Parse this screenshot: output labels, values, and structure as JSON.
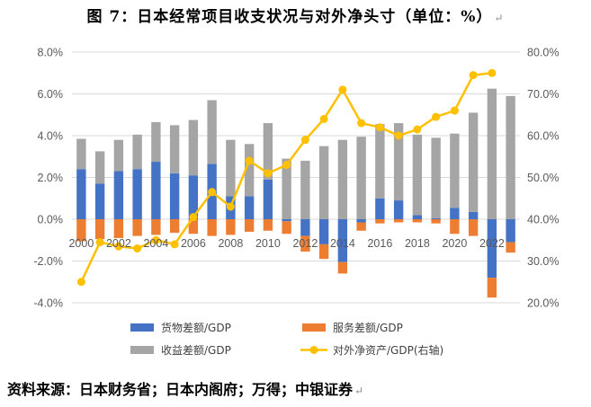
{
  "title": "图 7：日本经常项目收支状况与对外净头寸（单位：%）",
  "source": "资料来源：日本财务省；日本内阁府；万得；中银证券",
  "para_mark": "↵",
  "colors": {
    "goods": "#4472C4",
    "services": "#ED7D31",
    "income": "#A5A5A5",
    "nfa": "#FFC000",
    "grid": "#D9D9D9",
    "axis_text": "#595959"
  },
  "chart_data": {
    "type": "bar",
    "stacked": true,
    "categories": [
      "2000",
      "2001",
      "2002",
      "2003",
      "2004",
      "2005",
      "2006",
      "2007",
      "2008",
      "2009",
      "2010",
      "2011",
      "2012",
      "2013",
      "2014",
      "2015",
      "2016",
      "2017",
      "2018",
      "2019",
      "2020",
      "2021",
      "2022",
      "2023"
    ],
    "x_tick_labels": [
      "2000",
      "2002",
      "2004",
      "2006",
      "2008",
      "2010",
      "2012",
      "2014",
      "2016",
      "2018",
      "2020",
      "2022"
    ],
    "y_left": {
      "min": -4,
      "max": 8,
      "step": 2,
      "tick_labels": [
        "-4.0%",
        "-2.0%",
        "0.0%",
        "2.0%",
        "4.0%",
        "6.0%",
        "8.0%"
      ]
    },
    "y_right": {
      "min": 20,
      "max": 80,
      "step": 10,
      "tick_labels": [
        "20.0%",
        "30.0%",
        "40.0%",
        "50.0%",
        "60.0%",
        "70.0%",
        "80.0%"
      ]
    },
    "grid": true,
    "legend_position": "bottom",
    "series": [
      {
        "name": "货物差额/GDP",
        "type": "bar",
        "axis": "left",
        "color": "#4472C4",
        "values": [
          2.4,
          1.7,
          2.3,
          2.4,
          2.75,
          2.2,
          2.1,
          2.65,
          1.1,
          1.1,
          1.9,
          -0.1,
          -0.8,
          -1.2,
          -2.05,
          -0.15,
          1.0,
          0.9,
          0.2,
          0.05,
          0.55,
          0.35,
          -2.8,
          -1.1
        ]
      },
      {
        "name": "服务差额/GDP",
        "type": "bar",
        "axis": "left",
        "color": "#ED7D31",
        "values": [
          -1.05,
          -0.95,
          -0.9,
          -0.8,
          -0.75,
          -0.65,
          -0.7,
          -0.8,
          -0.75,
          -0.6,
          -0.55,
          -0.6,
          -0.75,
          -0.7,
          -0.55,
          -0.4,
          -0.2,
          -0.15,
          -0.15,
          -0.2,
          -0.7,
          -0.8,
          -0.95,
          -0.5
        ]
      },
      {
        "name": "收益差额/GDP",
        "type": "bar",
        "axis": "left",
        "color": "#A5A5A5",
        "values": [
          1.45,
          1.55,
          1.5,
          1.65,
          1.9,
          2.3,
          2.65,
          3.05,
          2.7,
          2.5,
          2.7,
          2.9,
          2.8,
          3.5,
          3.8,
          3.95,
          3.55,
          3.7,
          3.85,
          3.85,
          3.55,
          4.75,
          6.25,
          5.9
        ]
      },
      {
        "name": "对外净资产/GDP(右轴)",
        "type": "line",
        "axis": "right",
        "color": "#FFC000",
        "values": [
          25,
          34.5,
          33.5,
          33,
          35,
          34,
          40.5,
          46.5,
          43,
          54,
          51,
          53,
          59,
          64,
          71,
          63,
          62,
          60,
          61.5,
          64.5,
          66,
          74.5,
          75,
          null
        ]
      }
    ]
  }
}
